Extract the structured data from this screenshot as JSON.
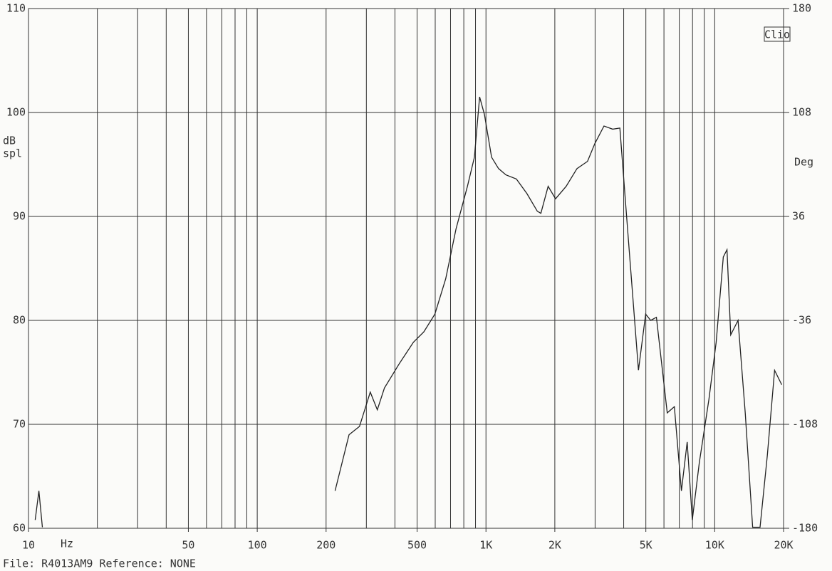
{
  "chart_data": {
    "type": "line",
    "brand": "Clio",
    "ylabel": [
      "dB",
      "spl"
    ],
    "y2label": "Deg",
    "xlabel": "Hz",
    "footer": "File: R4013AM9 Reference: NONE",
    "xscale": "log",
    "grid": true,
    "xlim": [
      10,
      20000
    ],
    "ylim": [
      60,
      110
    ],
    "y2lim": [
      -180,
      180
    ],
    "xticks": [
      10,
      50,
      100,
      200,
      500,
      {
        "value": 1000,
        "label": "1K"
      },
      {
        "value": 2000,
        "label": "2K"
      },
      {
        "value": 5000,
        "label": "5K"
      },
      {
        "value": 10000,
        "label": "10K"
      },
      {
        "value": 20000,
        "label": "20K"
      }
    ],
    "xgrid": [
      20,
      30,
      40,
      50,
      60,
      70,
      80,
      90,
      100,
      200,
      300,
      400,
      500,
      600,
      700,
      800,
      900,
      1000,
      2000,
      3000,
      4000,
      5000,
      6000,
      7000,
      8000,
      9000,
      10000,
      20000
    ],
    "yticks": [
      60,
      70,
      80,
      90,
      100,
      110
    ],
    "y2ticks": [
      -180,
      -108,
      -36,
      36,
      108,
      180
    ],
    "series": [
      {
        "name": "SPL",
        "color": "#222222",
        "x": [
          10.7,
          11.1,
          11.5,
          183,
          219,
          252,
          280,
          312,
          335,
          360,
          417,
          482,
          535,
          598,
          667,
          740,
          830,
          890,
          938,
          985,
          1058,
          1135,
          1222,
          1358,
          1510,
          1677,
          1738,
          1870,
          2015,
          2242,
          2500,
          2780,
          2990,
          3280,
          3580,
          3850,
          4160,
          4640,
          4990,
          5250,
          5560,
          6200,
          6660,
          7150,
          7580,
          7980,
          8560,
          9430,
          10150,
          10900,
          11320,
          11750,
          12650,
          13600,
          14650,
          15780,
          16980,
          18270,
          19650
        ],
        "values": [
          60.8,
          63.6,
          60.1,
          null,
          63.6,
          69,
          69.8,
          73.1,
          71.4,
          73.5,
          75.8,
          77.9,
          78.9,
          80.6,
          84,
          88.8,
          92.9,
          95.7,
          101.5,
          99.8,
          95.7,
          94.6,
          94,
          93.6,
          92.2,
          90.5,
          90.3,
          92.9,
          91.7,
          92.9,
          94.6,
          95.3,
          97,
          98.7,
          98.4,
          98.5,
          88.8,
          75.2,
          80.6,
          80,
          80.3,
          71.1,
          71.7,
          63.6,
          68.3,
          60.8,
          66.3,
          72.4,
          77.9,
          86.1,
          86.8,
          78.6,
          80,
          71.1,
          60.1,
          60.1,
          67,
          75.2,
          73.8
        ]
      }
    ]
  }
}
